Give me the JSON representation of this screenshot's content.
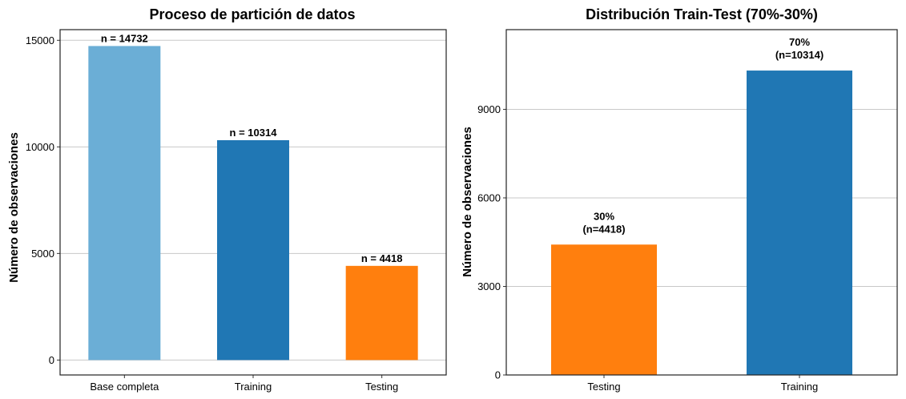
{
  "chart_data": [
    {
      "type": "bar",
      "title": "Proceso de partición de datos",
      "xlabel": "",
      "ylabel": "Número de observaciones",
      "categories": [
        "Base completa",
        "Training",
        "Testing"
      ],
      "values": [
        14732,
        10314,
        4418
      ],
      "colors": [
        "#6baed6",
        "#2077b4",
        "#ff7f0e"
      ],
      "labels": [
        [
          "n = 14732"
        ],
        [
          "n = 10314"
        ],
        [
          "n = 4418"
        ]
      ],
      "yticks": [
        0,
        5000,
        10000,
        15000
      ],
      "ylim": [
        -700,
        15500
      ],
      "grid": "horizontal"
    },
    {
      "type": "bar",
      "title": "Distribución Train-Test (70%-30%)",
      "xlabel": "",
      "ylabel": "Número de observaciones",
      "categories": [
        "Testing",
        "Training"
      ],
      "values": [
        4418,
        10314
      ],
      "colors": [
        "#ff7f0e",
        "#2077b4"
      ],
      "labels": [
        [
          "30%",
          "(n=4418)"
        ],
        [
          "70%",
          "(n=10314)"
        ]
      ],
      "yticks": [
        0,
        3000,
        6000,
        9000
      ],
      "ylim": [
        0,
        11700
      ],
      "grid": "horizontal"
    }
  ]
}
